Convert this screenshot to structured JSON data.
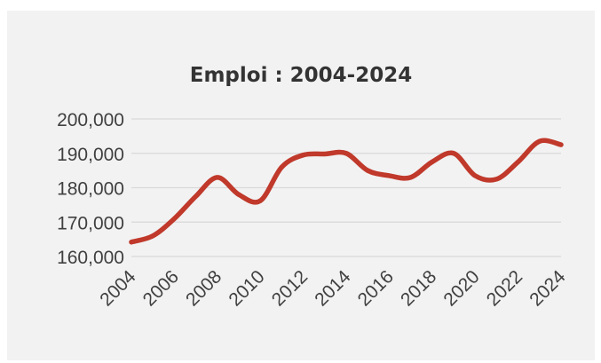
{
  "chart_data": {
    "type": "line",
    "title": "Emploi : 2004-2024",
    "xlabel": "",
    "ylabel": "",
    "x": [
      2004,
      2005,
      2006,
      2007,
      2008,
      2009,
      2010,
      2011,
      2012,
      2013,
      2014,
      2015,
      2016,
      2017,
      2018,
      2019,
      2020,
      2021,
      2022,
      2023,
      2024
    ],
    "series": [
      {
        "name": "",
        "color": "#c0392b",
        "values": [
          164200,
          166000,
          171000,
          177500,
          183000,
          178000,
          176200,
          186000,
          189500,
          189800,
          190000,
          185000,
          183500,
          183000,
          187500,
          190000,
          183500,
          182500,
          187500,
          193500,
          192500
        ]
      }
    ],
    "ylim": [
      160000,
      200000
    ],
    "y_ticks": [
      "160,000",
      "170,000",
      "180,000",
      "190,000",
      "200,000"
    ],
    "y_tick_values": [
      160000,
      170000,
      180000,
      190000,
      200000
    ],
    "x_ticks": [
      "2004",
      "2006",
      "2008",
      "2010",
      "2012",
      "2014",
      "2016",
      "2018",
      "2020",
      "2022",
      "2024"
    ],
    "x_tick_values": [
      2004,
      2006,
      2008,
      2010,
      2012,
      2014,
      2016,
      2018,
      2020,
      2022,
      2024
    ],
    "grid": true,
    "legend": "none",
    "colors": {
      "background": "#f2f2f2",
      "gridline": "#d9d9d9",
      "line": "#c0392b",
      "title": "#333333",
      "tick": "#404040"
    }
  }
}
